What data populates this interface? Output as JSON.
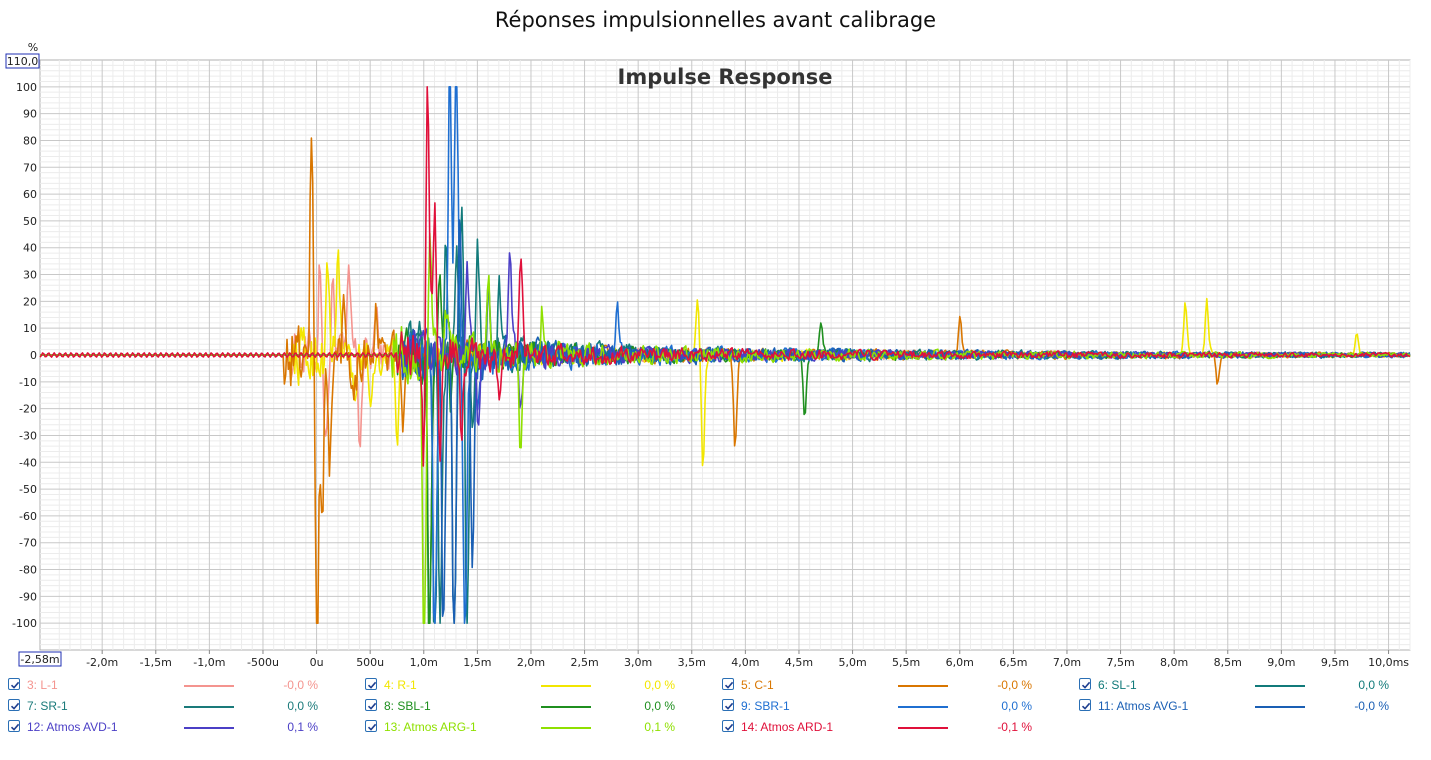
{
  "page_title": "Réponses impulsionnelles avant calibrage",
  "chart_data": {
    "type": "line",
    "title": "Impulse Response",
    "ylabel": "%",
    "ylim": [
      -110,
      110
    ],
    "ytop_label": "110,0",
    "xlim": [
      -2.58,
      10.2
    ],
    "xleft_label": "-2,58m",
    "x_unit": "ms",
    "grid": true,
    "legend_position": "bottom",
    "yticks": [
      100,
      90,
      80,
      70,
      60,
      50,
      40,
      30,
      20,
      10,
      0,
      -10,
      -20,
      -30,
      -40,
      -50,
      -60,
      -70,
      -80,
      -90,
      -100
    ],
    "ytick_labels": [
      "100",
      "90",
      "80",
      "70",
      "60",
      "50",
      "40",
      "30",
      "20",
      "10",
      "0",
      "-10",
      "-20",
      "-30",
      "-40",
      "-50",
      "-60",
      "-70",
      "-80",
      "-90",
      "-100"
    ],
    "xticks": [
      -2.0,
      -1.5,
      -1.0,
      -0.5,
      0,
      0.5,
      1.0,
      1.5,
      2.0,
      2.5,
      3.0,
      3.5,
      4.0,
      4.5,
      5.0,
      5.5,
      6.0,
      6.5,
      7.0,
      7.5,
      8.0,
      8.5,
      9.0,
      9.5,
      10.0
    ],
    "xtick_labels": [
      "-2,0m",
      "-1,5m",
      "-1,0m",
      "-500u",
      "0u",
      "500u",
      "1,0m",
      "1,5m",
      "2,0m",
      "2,5m",
      "3,0m",
      "3,5m",
      "4,0m",
      "4,5m",
      "5,0m",
      "5,5m",
      "6,0m",
      "6,5m",
      "7,0m",
      "7,5m",
      "8,0m",
      "8,5m",
      "9,0m",
      "9,5m",
      "10,0ms"
    ],
    "series": [
      {
        "name": "3: L-1",
        "color": "#f4948f",
        "value": "-0,0 %",
        "onset": 0.0,
        "peak": [
          [
            0.03,
            28
          ],
          [
            0.08,
            -30
          ],
          [
            0.15,
            20
          ],
          [
            0.3,
            22
          ],
          [
            0.4,
            -25
          ],
          [
            0.55,
            12
          ]
        ],
        "noise": 6
      },
      {
        "name": "4: R-1",
        "color": "#f2e600",
        "value": "0,0 %",
        "onset": 0.0,
        "peak": [
          [
            0.1,
            25
          ],
          [
            0.2,
            30
          ],
          [
            0.35,
            -20
          ],
          [
            0.5,
            -15
          ],
          [
            0.75,
            -22
          ],
          [
            3.6,
            -33
          ],
          [
            3.55,
            17
          ],
          [
            8.1,
            15
          ],
          [
            8.3,
            16
          ],
          [
            9.7,
            6
          ]
        ],
        "noise": 6
      },
      {
        "name": "5: C-1",
        "color": "#d97600",
        "value": "-0,0 %",
        "onset": -0.05,
        "peak": [
          [
            -0.05,
            63
          ],
          [
            0.0,
            -100
          ],
          [
            0.05,
            -40
          ],
          [
            0.12,
            -35
          ],
          [
            0.25,
            15
          ],
          [
            0.35,
            -10
          ],
          [
            0.55,
            15
          ],
          [
            0.8,
            -18
          ],
          [
            3.9,
            -28
          ],
          [
            6.0,
            12
          ],
          [
            8.4,
            -8
          ]
        ],
        "noise": 7
      },
      {
        "name": "6: SL-1",
        "color": "#117a7a",
        "value": "0,0 %",
        "onset": 1.05,
        "peak": [
          [
            1.1,
            -100
          ],
          [
            1.2,
            32
          ],
          [
            1.28,
            -100
          ],
          [
            1.35,
            40
          ],
          [
            1.4,
            -100
          ],
          [
            1.5,
            30
          ],
          [
            1.7,
            25
          ]
        ],
        "noise": 6
      },
      {
        "name": "7: SR-1",
        "color": "#1a7a7a",
        "value": "0,0 %",
        "onset": 1.05,
        "peak": [
          [
            1.05,
            -95
          ],
          [
            1.15,
            -90
          ],
          [
            1.3,
            30
          ],
          [
            1.45,
            -20
          ],
          [
            1.6,
            22
          ]
        ],
        "noise": 5
      },
      {
        "name": "8: SBL-1",
        "color": "#1f8f1f",
        "value": "0,0 %",
        "onset": 1.0,
        "peak": [
          [
            1.05,
            -100
          ],
          [
            1.15,
            22
          ],
          [
            1.25,
            -15
          ],
          [
            4.55,
            -18
          ],
          [
            4.7,
            10
          ]
        ],
        "noise": 5
      },
      {
        "name": "9: SBR-1",
        "color": "#1f6fd1",
        "value": "0,0 %",
        "onset": 1.05,
        "peak": [
          [
            1.1,
            -100
          ],
          [
            1.24,
            100
          ],
          [
            1.3,
            100
          ],
          [
            1.38,
            -100
          ],
          [
            1.5,
            -20
          ],
          [
            2.8,
            15
          ]
        ],
        "noise": 6
      },
      {
        "name": "11: Atmos AVG-1",
        "color": "#1a5fb4",
        "value": "-0,0 %",
        "onset": 1.05,
        "peak": [
          [
            1.18,
            -80
          ],
          [
            1.28,
            -95
          ],
          [
            1.33,
            40
          ],
          [
            1.45,
            -60
          ],
          [
            1.6,
            20
          ]
        ],
        "noise": 6
      },
      {
        "name": "12: Atmos AVD-1",
        "color": "#4b3fc6",
        "value": "0,1 %",
        "onset": 1.05,
        "peak": [
          [
            1.4,
            25
          ],
          [
            1.5,
            -20
          ],
          [
            1.8,
            30
          ],
          [
            1.9,
            -15
          ]
        ],
        "noise": 5
      },
      {
        "name": "13: Atmos ARG-1",
        "color": "#8fe000",
        "value": "0,1 %",
        "onset": 0.95,
        "peak": [
          [
            1.0,
            -100
          ],
          [
            1.05,
            35
          ],
          [
            1.2,
            22
          ],
          [
            1.6,
            18
          ],
          [
            1.9,
            -28
          ],
          [
            2.1,
            12
          ]
        ],
        "noise": 6
      },
      {
        "name": "14: Atmos ARD-1",
        "color": "#e0103a",
        "value": "-0,1 %",
        "onset": 1.0,
        "peak": [
          [
            1.03,
            100
          ],
          [
            1.0,
            -32
          ],
          [
            1.1,
            38
          ],
          [
            1.15,
            -28
          ],
          [
            1.35,
            -25
          ],
          [
            1.9,
            30
          ],
          [
            1.7,
            -12
          ]
        ],
        "noise": 5
      }
    ]
  }
}
